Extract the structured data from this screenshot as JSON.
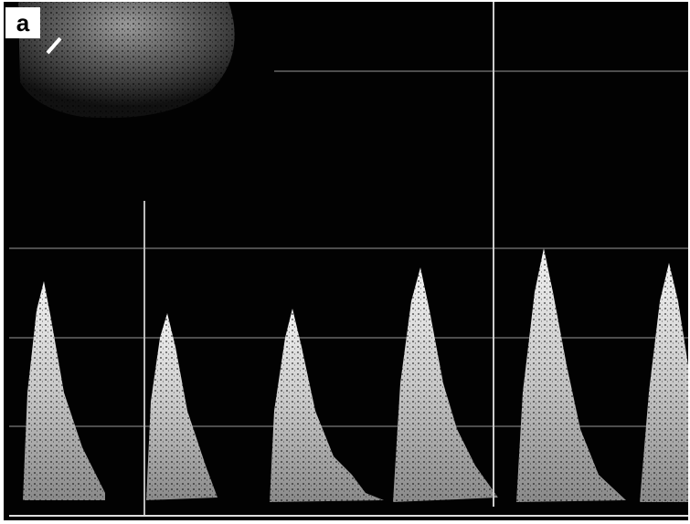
{
  "image": {
    "panel_label": "a"
  }
}
